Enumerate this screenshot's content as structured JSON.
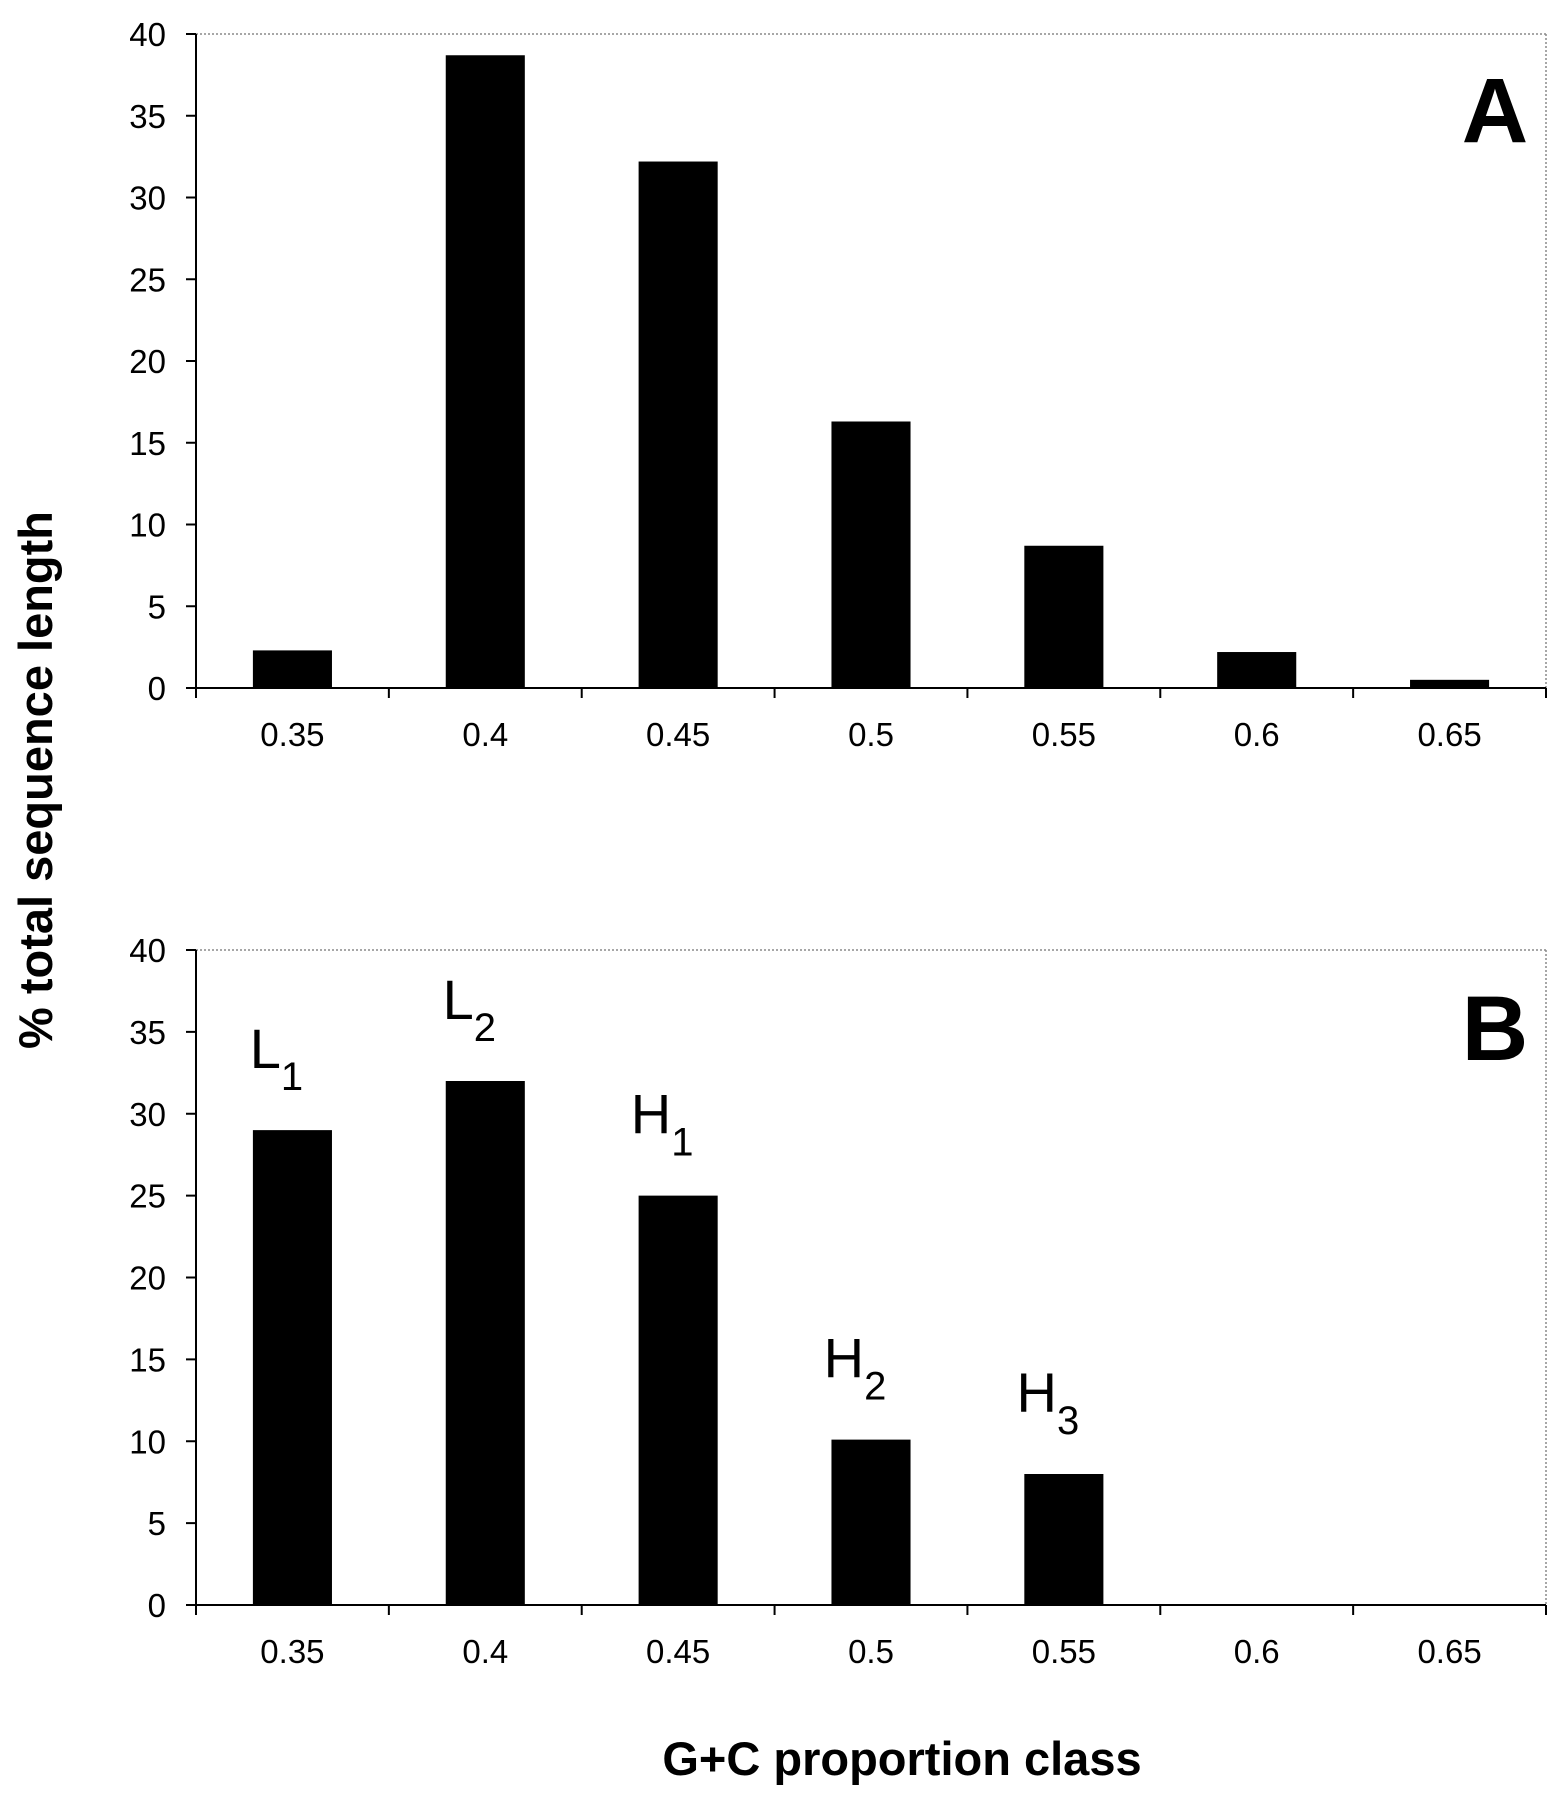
{
  "chart_data": [
    {
      "type": "bar",
      "panel": "A",
      "categories": [
        "0.35",
        "0.4",
        "0.45",
        "0.5",
        "0.55",
        "0.6",
        "0.65"
      ],
      "values": [
        2.3,
        38.7,
        32.2,
        16.3,
        8.7,
        2.2,
        0.5
      ],
      "ylim": [
        0,
        40
      ],
      "yticks": [
        "0",
        "5",
        "10",
        "15",
        "20",
        "25",
        "30",
        "35",
        "40"
      ],
      "bar_color": "#000000",
      "grid": false,
      "legend": "none"
    },
    {
      "type": "bar",
      "panel": "B",
      "categories": [
        "0.35",
        "0.4",
        "0.45",
        "0.5",
        "0.55",
        "0.6",
        "0.65"
      ],
      "values": [
        29,
        32,
        25,
        10.1,
        8,
        0,
        0
      ],
      "bar_labels": [
        {
          "main": "L",
          "sub": "1"
        },
        {
          "main": "L",
          "sub": "2"
        },
        {
          "main": "H",
          "sub": "1"
        },
        {
          "main": "H",
          "sub": "2"
        },
        {
          "main": "H",
          "sub": "3"
        },
        null,
        null
      ],
      "ylim": [
        0,
        40
      ],
      "yticks": [
        "0",
        "5",
        "10",
        "15",
        "20",
        "25",
        "30",
        "35",
        "40"
      ],
      "bar_color": "#000000",
      "grid": false,
      "legend": "none"
    }
  ],
  "ylabel": "% total sequence length",
  "xlabel": "G+C proportion class"
}
